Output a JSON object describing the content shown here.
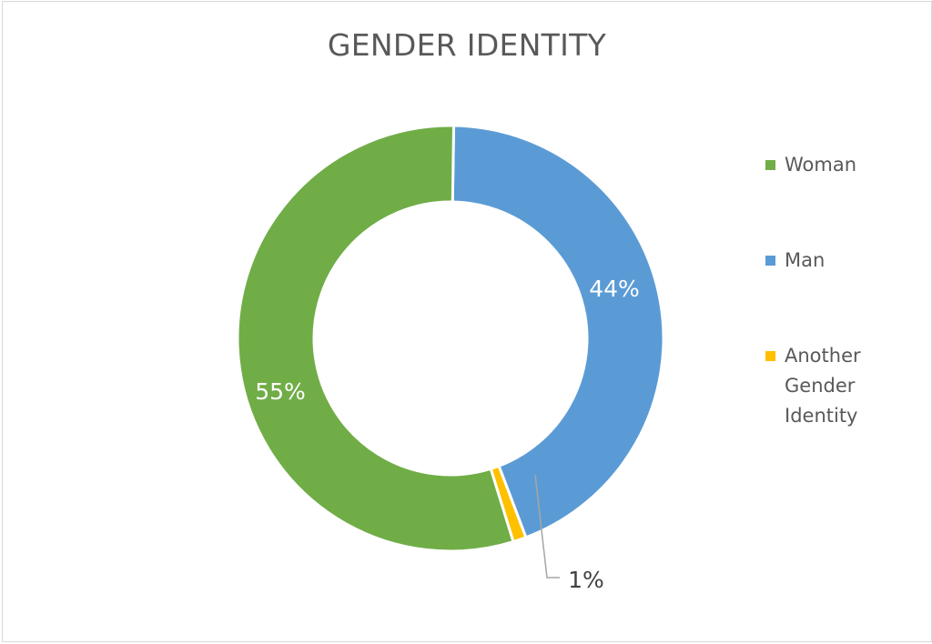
{
  "chart_data": {
    "type": "pie",
    "subtype": "donut",
    "title": "GENDER IDENTITY",
    "categories": [
      "Woman",
      "Man",
      "Another Gender Identity"
    ],
    "values": [
      55,
      44,
      1
    ],
    "labels": [
      "55%",
      "44%",
      "1%"
    ],
    "colors": [
      "#70ad47",
      "#5b9bd5",
      "#ffc000"
    ],
    "legend_position": "right",
    "start_order": [
      "Man",
      "Another Gender Identity",
      "Woman"
    ]
  },
  "title": "GENDER IDENTITY",
  "legend": [
    {
      "label": "Woman",
      "color": "#70ad47"
    },
    {
      "label": "Man",
      "color": "#5b9bd5"
    },
    {
      "label": "Another Gender Identity",
      "color": "#ffc000"
    }
  ],
  "data_labels": {
    "woman": "55%",
    "man": "44%",
    "another": "1%"
  }
}
